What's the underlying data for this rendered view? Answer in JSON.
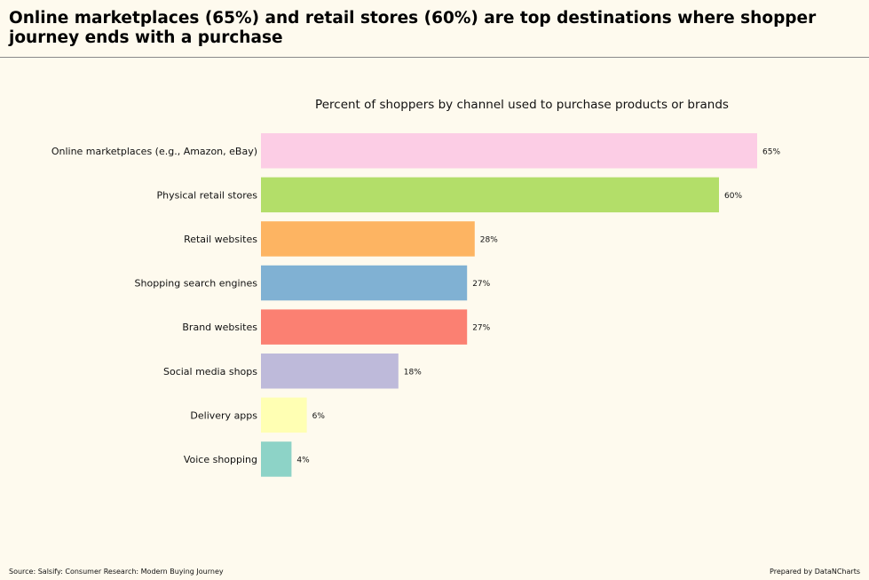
{
  "headline": "Online marketplaces (65%) and retail stores (60%) are top destinations where shopper journey ends with a purchase",
  "footer": {
    "source": "Source: Salsify: Consumer Research: Modern Buying Journey",
    "credit": "Prepared by DataNCharts"
  },
  "chart_data": {
    "type": "bar",
    "orientation": "horizontal",
    "title": "Percent of shoppers by channel used to purchase products or brands",
    "xlabel": "",
    "ylabel": "",
    "xlim": [
      0,
      65
    ],
    "grid": false,
    "categories": [
      "Online marketplaces (e.g., Amazon, eBay)",
      "Physical retail stores",
      "Retail websites",
      "Shopping search engines",
      "Brand websites",
      "Social media shops",
      "Delivery apps",
      "Voice shopping"
    ],
    "values": [
      65,
      60,
      28,
      27,
      27,
      18,
      6,
      4
    ],
    "value_labels": [
      "65%",
      "60%",
      "28%",
      "27%",
      "27%",
      "18%",
      "6%",
      "4%"
    ],
    "colors": [
      "#fccde5",
      "#b3de69",
      "#fdb462",
      "#80b1d3",
      "#fb8072",
      "#bebada",
      "#ffffb3",
      "#8dd3c7"
    ]
  }
}
